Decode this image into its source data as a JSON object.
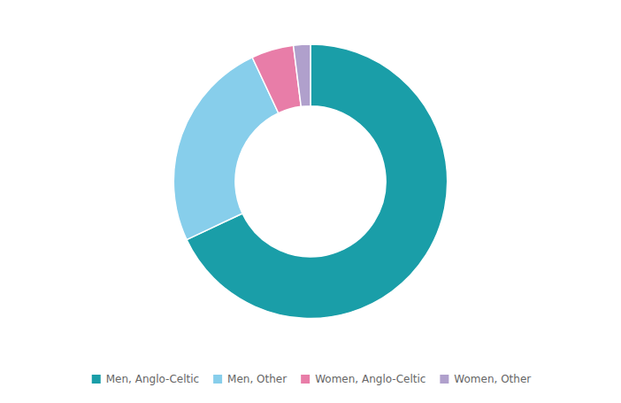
{
  "chart_data": {
    "type": "donut",
    "categories": [
      "Men, Anglo-Celtic",
      "Men, Other",
      "Women, Anglo-Celtic",
      "Women, Other"
    ],
    "values": [
      68,
      25,
      5,
      2
    ],
    "colors": [
      "#1a9ea8",
      "#87ceeb",
      "#e87da8",
      "#b0a0cc"
    ],
    "legend": "bottom"
  }
}
